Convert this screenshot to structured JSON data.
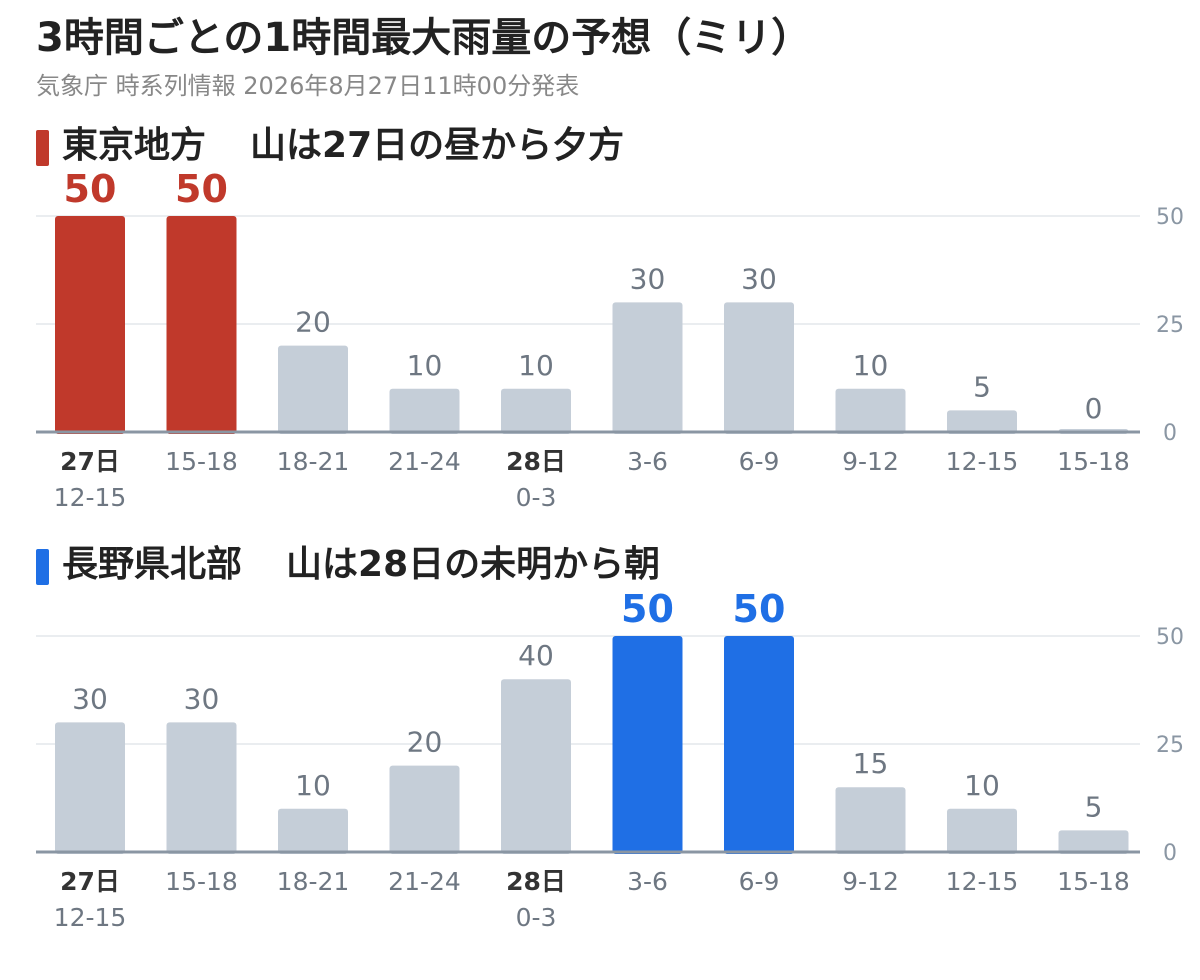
{
  "header": {
    "title": "3時間ごとの1時間最大雨量の予想（ミリ）",
    "subtitle": "気象庁 時系列情報 2026年8月27日11時00分発表"
  },
  "colors": {
    "tokyo_accent": "#c0392b",
    "nagano_accent": "#1f6fe5",
    "bar_default": "#c5ced8",
    "axis": "#8a96a3",
    "grid": "#e3e7eb",
    "label": "#6e7782"
  },
  "chart_data": [
    {
      "type": "bar",
      "region": "東京地方",
      "headline": "山は27日の昼から夕方",
      "day_labels": [
        "27日",
        "",
        "",
        "",
        "28日",
        "",
        "",
        "",
        "",
        ""
      ],
      "categories": [
        "12-15",
        "15-18",
        "18-21",
        "21-24",
        "0-3",
        "3-6",
        "6-9",
        "9-12",
        "12-15",
        "15-18"
      ],
      "values": [
        50,
        50,
        20,
        10,
        10,
        30,
        30,
        10,
        5,
        0
      ],
      "highlight": [
        true,
        true,
        false,
        false,
        false,
        false,
        false,
        false,
        false,
        false
      ],
      "yticks": [
        0,
        25,
        50
      ],
      "ylim": [
        0,
        50
      ],
      "grid": true
    },
    {
      "type": "bar",
      "region": "長野県北部",
      "headline": "山は28日の未明から朝",
      "day_labels": [
        "27日",
        "",
        "",
        "",
        "28日",
        "",
        "",
        "",
        "",
        ""
      ],
      "categories": [
        "12-15",
        "15-18",
        "18-21",
        "21-24",
        "0-3",
        "3-6",
        "6-9",
        "9-12",
        "12-15",
        "15-18"
      ],
      "values": [
        30,
        30,
        10,
        20,
        40,
        50,
        50,
        15,
        10,
        5
      ],
      "highlight": [
        false,
        false,
        false,
        false,
        false,
        true,
        true,
        false,
        false,
        false
      ],
      "yticks": [
        0,
        25,
        50
      ],
      "ylim": [
        0,
        50
      ],
      "grid": true
    }
  ]
}
